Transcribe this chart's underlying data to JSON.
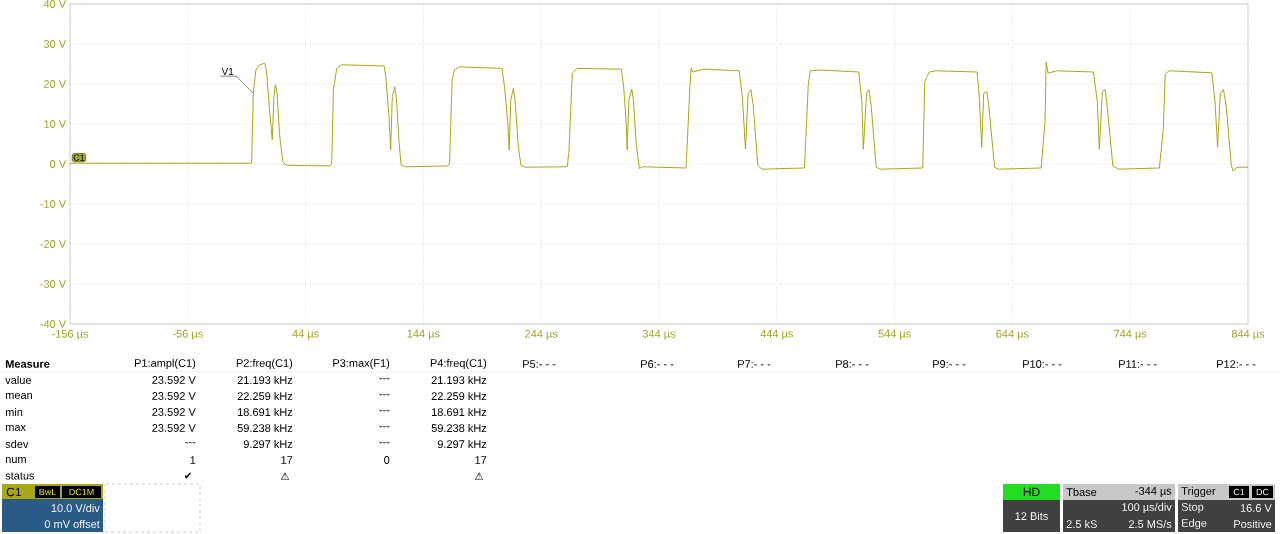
{
  "chart_data": {
    "type": "line",
    "grid": true,
    "xlim": [
      -156,
      844
    ],
    "xticks": [
      {
        "value": -156,
        "label": "-156 µs"
      },
      {
        "value": -56,
        "label": "-56 µs"
      },
      {
        "value": 44,
        "label": "44 µs"
      },
      {
        "value": 144,
        "label": "144 µs"
      },
      {
        "value": 244,
        "label": "244 µs"
      },
      {
        "value": 344,
        "label": "344 µs"
      },
      {
        "value": 444,
        "label": "444 µs"
      },
      {
        "value": 544,
        "label": "544 µs"
      },
      {
        "value": 644,
        "label": "644 µs"
      },
      {
        "value": 744,
        "label": "744 µs"
      },
      {
        "value": 844,
        "label": "844 µs"
      }
    ],
    "ylim": [
      -40,
      40
    ],
    "yticks": [
      {
        "value": -40,
        "label": "-40 V"
      },
      {
        "value": -30,
        "label": "-30 V"
      },
      {
        "value": -20,
        "label": "-20 V"
      },
      {
        "value": -10,
        "label": "-10 V"
      },
      {
        "value": 0,
        "label": "0 V"
      },
      {
        "value": 10,
        "label": "10 V"
      },
      {
        "value": 20,
        "label": "20 V"
      },
      {
        "value": 30,
        "label": "30 V"
      },
      {
        "value": 40,
        "label": "40 V"
      }
    ],
    "series": [
      {
        "name": "V1",
        "color": "#a8a814",
        "x": [
          -156,
          -1.8,
          -0.4,
          1.8,
          5.1,
          9.3,
          10.7,
          13.4,
          15.7,
          17.1,
          18.4,
          19.8,
          21.8,
          24.6,
          27.3,
          64.8,
          66.2,
          67.6,
          70.4,
          74.6,
          110.7,
          112.1,
          114.8,
          116.2,
          117.6,
          119.6,
          121.2,
          123.2,
          125.1,
          128.7,
          164.8,
          166.2,
          168.4,
          170.4,
          174.6,
          210.7,
          212.9,
          215.7,
          216.8,
          218.2,
          220.4,
          221.8,
          224.6,
          226.8,
          230.1,
          266.2,
          267.6,
          270.4,
          274.6,
          312.1,
          314,
          316.2,
          317,
          318.4,
          320.9,
          322.3,
          324.6,
          327.3,
          330.1,
          367,
          370.3,
          371.3,
          372.6,
          381.8,
          412.1,
          414.8,
          417.4,
          419.7,
          422,
          424,
          427.9,
          431.2,
          467.5,
          470.7,
          472.4,
          480.6,
          513.6,
          516.2,
          517.5,
          520.2,
          522.1,
          524.1,
          528.4,
          531.7,
          567.9,
          569.6,
          573.5,
          579.4,
          614,
          615.7,
          618,
          619.6,
          622.3,
          623.9,
          628.9,
          632.1,
          668.4,
          671.7,
          672.7,
          674.3,
          681.6,
          712.8,
          716.1,
          717.8,
          720.4,
          722.7,
          724.4,
          729.3,
          734.2,
          768.8,
          772.1,
          773.8,
          777.1,
          813.3,
          816,
          818.2,
          820.5,
          823.2,
          825.5,
          829.8,
          831.4,
          834.7,
          844
        ],
        "values": [
          0.2,
          0.2,
          17.7,
          23.5,
          24.8,
          25.2,
          23.5,
          13.5,
          6,
          16.8,
          19.8,
          17.7,
          7.7,
          0.6,
          -0.3,
          -0.5,
          0.2,
          18.5,
          23.9,
          24.8,
          24.5,
          21.8,
          11.8,
          3.5,
          16.8,
          19.3,
          16,
          6,
          -0.3,
          -0.7,
          -0.5,
          0.2,
          21,
          23.5,
          24.3,
          23.9,
          19.3,
          10.2,
          3.5,
          16,
          18.9,
          16,
          4.3,
          -0.3,
          -0.8,
          -0.7,
          3.5,
          22.7,
          23.9,
          23.7,
          19.3,
          10.2,
          3.5,
          16,
          18.7,
          16,
          5.2,
          -1.1,
          -0.7,
          -1,
          19.6,
          24,
          23,
          23.7,
          23.3,
          16.6,
          3.7,
          17.6,
          18.6,
          14.6,
          -0.3,
          -1.3,
          -1,
          19.6,
          23.3,
          23.5,
          23,
          15.6,
          3.7,
          17.6,
          18.6,
          14.6,
          -0.8,
          -1.3,
          -1,
          20.6,
          23,
          23.3,
          23,
          17.6,
          4.2,
          17.6,
          18.1,
          14.6,
          -0.8,
          -1.3,
          -1,
          10.6,
          25.5,
          22.7,
          23.3,
          23,
          15.6,
          3.7,
          18.1,
          18.6,
          14.6,
          -0.5,
          -1.3,
          -1,
          8.7,
          22.5,
          23.3,
          22.8,
          15.6,
          4.2,
          17.6,
          18.6,
          14.6,
          -0.3,
          -1.8,
          -0.8,
          -0.8
        ]
      }
    ],
    "annotations": [
      "Measure",
      "P1:ampl(C1)",
      "P2:freq(C1)",
      "P3:max(F1)",
      "P4:freq(C1)",
      "P5:- - -",
      "P6:- - -",
      "P7:- - -",
      "P8:- - -",
      "P9:- - -",
      "P10:- - -",
      "P11:- - -",
      "P12:- - -",
      "value",
      "23.592 V",
      "21.193 kHz",
      "---",
      "21.193 kHz",
      "mean",
      "23.592 V",
      "22.259 kHz",
      "---",
      "22.259 kHz",
      "min",
      "23.592 V",
      "18.691 kHz",
      "---",
      "18.691 kHz",
      "max",
      "23.592 V",
      "59.238 kHz",
      "---",
      "59.238 kHz",
      "sdev",
      "---",
      "9.297 kHz",
      "---",
      "9.297 kHz",
      "num",
      "1",
      "17",
      "0",
      "17",
      "status",
      "✔",
      "⚠",
      "⚠",
      "C1",
      "BwL",
      "DC1M",
      "10.0 V/div",
      "0 mV offset",
      "HD",
      "12 Bits",
      "Tbase",
      "-344 µs",
      "100 µs/div",
      "2.5 kS",
      "2.5 MS/s",
      "Trigger",
      "C1",
      "DC",
      "Stop",
      "16.6 V",
      "Edge",
      "Positive",
      {
        "text": "C1",
        "x": -156,
        "y": 0
      }
    ]
  }
}
